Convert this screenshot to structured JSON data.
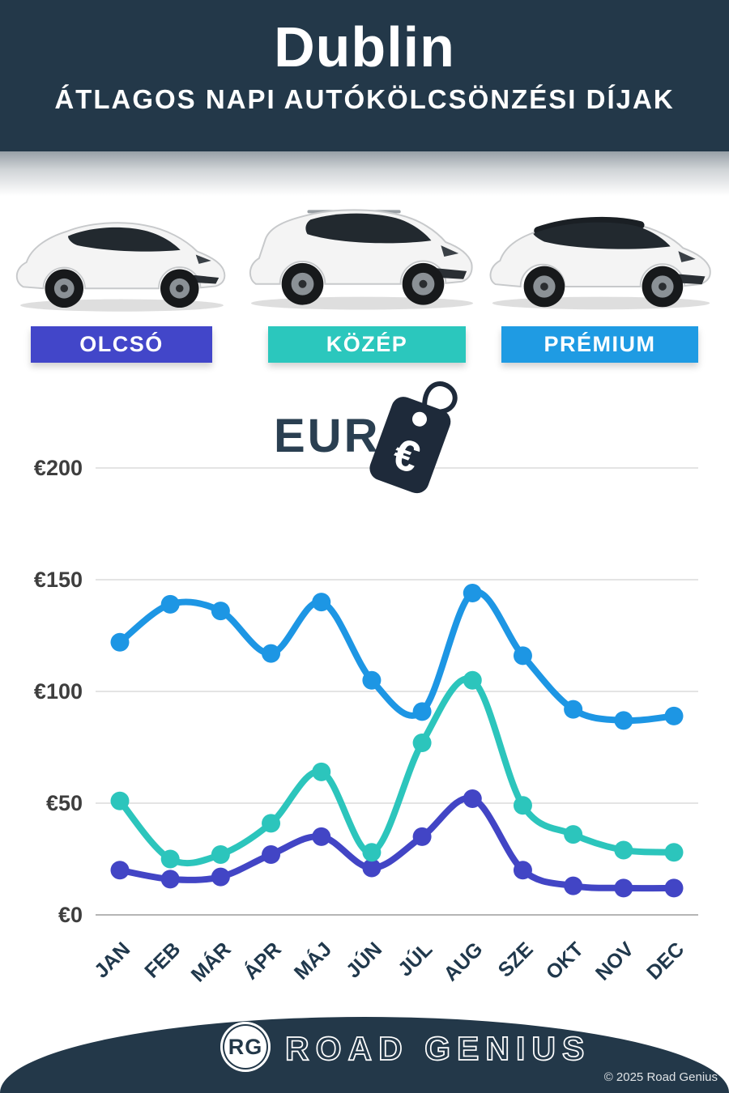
{
  "header": {
    "title": "Dublin",
    "subtitle": "ÁTLAGOS NAPI AUTÓKÖLCSÖNZÉSI DÍJAK"
  },
  "tiers": [
    {
      "label": "OLCSÓ",
      "color": "#4246c9"
    },
    {
      "label": "KÖZÉP",
      "color": "#2bc7bd"
    },
    {
      "label": "PRÉMIUM",
      "color": "#1f9be3"
    }
  ],
  "currency": {
    "code": "EUR",
    "symbol": "€"
  },
  "chart_data": {
    "type": "line",
    "title": "Dublin átlagos napi autókölcsönzési díjak (EUR)",
    "categories": [
      "JAN",
      "FEB",
      "MÁR",
      "ÁPR",
      "MÁJ",
      "JÚN",
      "JÚL",
      "AUG",
      "SZE",
      "OKT",
      "NOV",
      "DEC"
    ],
    "series": [
      {
        "name": "PRÉMIUM",
        "color": "#1d96e4",
        "values": [
          122,
          139,
          136,
          117,
          140,
          105,
          91,
          144,
          116,
          92,
          87,
          89
        ]
      },
      {
        "name": "OLCSÓ",
        "color": "#4245c5",
        "values": [
          20,
          16,
          17,
          27,
          35,
          21,
          35,
          52,
          20,
          13,
          12,
          12
        ]
      },
      {
        "name": "KÖZÉP",
        "color": "#2cc5bc",
        "values": [
          51,
          25,
          27,
          41,
          64,
          28,
          77,
          105,
          49,
          36,
          29,
          28
        ]
      }
    ],
    "y_ticks": [
      {
        "label": "€0",
        "value": 0
      },
      {
        "label": "€50",
        "value": 50
      },
      {
        "label": "€100",
        "value": 100
      },
      {
        "label": "€150",
        "value": 150
      },
      {
        "label": "€200",
        "value": 200
      }
    ],
    "ylim": [
      0,
      200
    ],
    "grid": true,
    "legend": "none"
  },
  "footer": {
    "logo_initials": "RG",
    "brand": "ROAD GENIUS",
    "copyright": "© 2025 Road Genius"
  }
}
